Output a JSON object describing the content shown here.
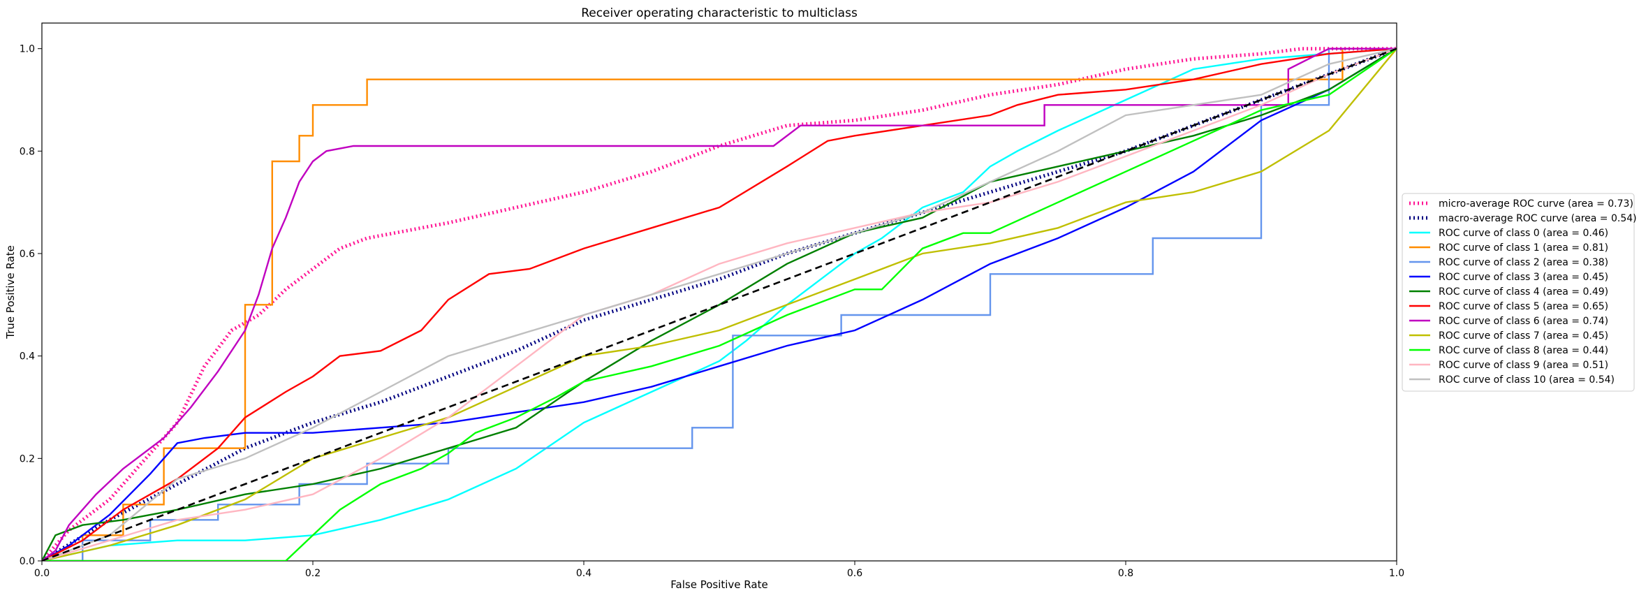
{
  "chart_data": {
    "type": "line",
    "title": "Receiver operating characteristic to multiclass",
    "xlabel": "False Positive Rate",
    "ylabel": "True Positive Rate",
    "xlim": [
      0.0,
      1.0
    ],
    "ylim": [
      0.0,
      1.05
    ],
    "xticks": [
      0.0,
      0.2,
      0.4,
      0.6,
      0.8,
      1.0
    ],
    "xtick_labels": [
      "0.0",
      "0.2",
      "0.4",
      "0.6",
      "0.8",
      "1.0"
    ],
    "yticks": [
      0.0,
      0.2,
      0.4,
      0.6,
      0.8,
      1.0
    ],
    "ytick_labels": [
      "0.0",
      "0.2",
      "0.4",
      "0.6",
      "0.8",
      "1.0"
    ],
    "grid": false,
    "legend_position": "center-right, outside plot",
    "reference_line": {
      "x": [
        0,
        1
      ],
      "y": [
        0,
        1
      ],
      "color": "#000000",
      "style": "dashed"
    },
    "series": [
      {
        "name": "micro-average ROC curve (area = 0.73)",
        "color": "#ff1493",
        "style": "dotted-thick",
        "x": [
          0.0,
          0.02,
          0.05,
          0.08,
          0.1,
          0.12,
          0.14,
          0.16,
          0.18,
          0.2,
          0.22,
          0.24,
          0.26,
          0.3,
          0.35,
          0.4,
          0.45,
          0.5,
          0.55,
          0.6,
          0.65,
          0.7,
          0.75,
          0.8,
          0.85,
          0.9,
          0.93,
          0.95,
          1.0
        ],
        "y": [
          0.0,
          0.06,
          0.12,
          0.21,
          0.27,
          0.38,
          0.45,
          0.48,
          0.53,
          0.57,
          0.61,
          0.63,
          0.64,
          0.66,
          0.69,
          0.72,
          0.76,
          0.81,
          0.85,
          0.86,
          0.88,
          0.91,
          0.93,
          0.96,
          0.98,
          0.99,
          1.0,
          1.0,
          1.0
        ]
      },
      {
        "name": "macro-average ROC curve (area = 0.54)",
        "color": "#000080",
        "style": "dotted-thick",
        "x": [
          0.0,
          0.05,
          0.1,
          0.15,
          0.2,
          0.25,
          0.3,
          0.35,
          0.4,
          0.45,
          0.5,
          0.55,
          0.6,
          0.65,
          0.7,
          0.75,
          0.8,
          0.85,
          0.9,
          0.95,
          1.0
        ],
        "y": [
          0.0,
          0.08,
          0.15,
          0.22,
          0.27,
          0.31,
          0.36,
          0.41,
          0.47,
          0.51,
          0.55,
          0.6,
          0.64,
          0.68,
          0.72,
          0.76,
          0.8,
          0.85,
          0.9,
          0.95,
          1.0
        ]
      },
      {
        "name": "ROC curve of class 0 (area = 0.46)",
        "color": "#00ffff",
        "style": "solid",
        "x": [
          0.0,
          0.05,
          0.1,
          0.15,
          0.2,
          0.25,
          0.3,
          0.35,
          0.4,
          0.45,
          0.5,
          0.52,
          0.55,
          0.58,
          0.6,
          0.62,
          0.65,
          0.68,
          0.7,
          0.72,
          0.75,
          0.8,
          0.85,
          0.9,
          0.95,
          1.0
        ],
        "y": [
          0.0,
          0.03,
          0.04,
          0.04,
          0.05,
          0.08,
          0.12,
          0.18,
          0.27,
          0.33,
          0.39,
          0.43,
          0.5,
          0.56,
          0.6,
          0.63,
          0.69,
          0.72,
          0.77,
          0.8,
          0.84,
          0.9,
          0.96,
          0.98,
          0.99,
          1.0
        ]
      },
      {
        "name": "ROC curve of class 1 (area = 0.81)",
        "color": "#ff8c00",
        "style": "step",
        "x": [
          0.0,
          0.03,
          0.03,
          0.06,
          0.06,
          0.09,
          0.09,
          0.15,
          0.15,
          0.17,
          0.17,
          0.19,
          0.19,
          0.2,
          0.2,
          0.22,
          0.22,
          0.24,
          0.24,
          0.96,
          0.96,
          1.0
        ],
        "y": [
          0.0,
          0.0,
          0.05,
          0.05,
          0.11,
          0.11,
          0.22,
          0.22,
          0.5,
          0.5,
          0.78,
          0.78,
          0.83,
          0.83,
          0.89,
          0.89,
          0.89,
          0.89,
          0.94,
          0.94,
          1.0,
          1.0
        ]
      },
      {
        "name": "ROC curve of class 2 (area = 0.38)",
        "color": "#6495ed",
        "style": "step",
        "x": [
          0.0,
          0.03,
          0.03,
          0.08,
          0.08,
          0.13,
          0.13,
          0.19,
          0.19,
          0.24,
          0.24,
          0.3,
          0.3,
          0.48,
          0.48,
          0.51,
          0.51,
          0.59,
          0.59,
          0.7,
          0.7,
          0.82,
          0.82,
          0.9,
          0.9,
          0.95,
          0.95,
          1.0
        ],
        "y": [
          0.0,
          0.0,
          0.04,
          0.04,
          0.08,
          0.08,
          0.11,
          0.11,
          0.15,
          0.15,
          0.19,
          0.19,
          0.22,
          0.22,
          0.26,
          0.26,
          0.44,
          0.44,
          0.48,
          0.48,
          0.56,
          0.56,
          0.63,
          0.63,
          0.89,
          0.89,
          1.0,
          1.0
        ]
      },
      {
        "name": "ROC curve of class 3 (area = 0.45)",
        "color": "#0000ff",
        "style": "solid",
        "x": [
          0.0,
          0.02,
          0.05,
          0.08,
          0.1,
          0.12,
          0.15,
          0.2,
          0.25,
          0.3,
          0.35,
          0.4,
          0.45,
          0.5,
          0.55,
          0.6,
          0.65,
          0.7,
          0.75,
          0.8,
          0.85,
          0.9,
          0.95,
          1.0
        ],
        "y": [
          0.0,
          0.03,
          0.09,
          0.17,
          0.23,
          0.24,
          0.25,
          0.25,
          0.26,
          0.27,
          0.29,
          0.31,
          0.34,
          0.38,
          0.42,
          0.45,
          0.51,
          0.58,
          0.63,
          0.69,
          0.76,
          0.86,
          0.92,
          1.0
        ]
      },
      {
        "name": "ROC curve of class 4 (area = 0.49)",
        "color": "#008000",
        "style": "solid",
        "x": [
          0.0,
          0.01,
          0.03,
          0.06,
          0.1,
          0.15,
          0.2,
          0.25,
          0.3,
          0.35,
          0.4,
          0.45,
          0.5,
          0.55,
          0.6,
          0.65,
          0.7,
          0.75,
          0.8,
          0.85,
          0.9,
          0.95,
          1.0
        ],
        "y": [
          0.0,
          0.05,
          0.07,
          0.08,
          0.1,
          0.13,
          0.15,
          0.18,
          0.22,
          0.26,
          0.35,
          0.43,
          0.5,
          0.58,
          0.64,
          0.67,
          0.74,
          0.77,
          0.8,
          0.83,
          0.87,
          0.92,
          1.0
        ]
      },
      {
        "name": "ROC curve of class 5 (area = 0.65)",
        "color": "#ff0000",
        "style": "solid",
        "x": [
          0.0,
          0.03,
          0.06,
          0.1,
          0.13,
          0.15,
          0.18,
          0.2,
          0.22,
          0.25,
          0.28,
          0.3,
          0.33,
          0.36,
          0.4,
          0.45,
          0.5,
          0.55,
          0.58,
          0.6,
          0.65,
          0.7,
          0.72,
          0.75,
          0.8,
          0.85,
          0.9,
          0.95,
          1.0
        ],
        "y": [
          0.0,
          0.04,
          0.1,
          0.16,
          0.22,
          0.28,
          0.33,
          0.36,
          0.4,
          0.41,
          0.45,
          0.51,
          0.56,
          0.57,
          0.61,
          0.65,
          0.69,
          0.77,
          0.82,
          0.83,
          0.85,
          0.87,
          0.89,
          0.91,
          0.92,
          0.94,
          0.97,
          0.99,
          1.0
        ]
      },
      {
        "name": "ROC curve of class 6 (area = 0.74)",
        "color": "#c000c0",
        "style": "step",
        "x": [
          0.0,
          0.01,
          0.02,
          0.04,
          0.06,
          0.09,
          0.11,
          0.13,
          0.15,
          0.16,
          0.17,
          0.18,
          0.19,
          0.2,
          0.21,
          0.23,
          0.23,
          0.54,
          0.56,
          0.74,
          0.74,
          0.92,
          0.92,
          0.95,
          1.0
        ],
        "y": [
          0.0,
          0.02,
          0.07,
          0.13,
          0.18,
          0.24,
          0.3,
          0.37,
          0.45,
          0.52,
          0.61,
          0.67,
          0.74,
          0.78,
          0.8,
          0.81,
          0.81,
          0.81,
          0.85,
          0.85,
          0.89,
          0.89,
          0.96,
          1.0,
          1.0
        ]
      },
      {
        "name": "ROC curve of class 7 (area = 0.45)",
        "color": "#bfbf00",
        "style": "solid",
        "x": [
          0.0,
          0.05,
          0.1,
          0.15,
          0.2,
          0.25,
          0.3,
          0.35,
          0.4,
          0.45,
          0.5,
          0.55,
          0.6,
          0.65,
          0.7,
          0.75,
          0.8,
          0.85,
          0.9,
          0.95,
          1.0
        ],
        "y": [
          0.0,
          0.03,
          0.07,
          0.12,
          0.2,
          0.24,
          0.28,
          0.34,
          0.4,
          0.42,
          0.45,
          0.5,
          0.55,
          0.6,
          0.62,
          0.65,
          0.7,
          0.72,
          0.76,
          0.84,
          1.0
        ]
      },
      {
        "name": "ROC curve of class 8 (area = 0.44)",
        "color": "#00ff00",
        "style": "step",
        "x": [
          0.0,
          0.18,
          0.2,
          0.22,
          0.25,
          0.28,
          0.3,
          0.32,
          0.35,
          0.38,
          0.4,
          0.45,
          0.5,
          0.55,
          0.6,
          0.62,
          0.65,
          0.68,
          0.7,
          0.75,
          0.8,
          0.85,
          0.9,
          0.95,
          1.0
        ],
        "y": [
          0.0,
          0.0,
          0.05,
          0.1,
          0.15,
          0.18,
          0.21,
          0.25,
          0.28,
          0.32,
          0.35,
          0.38,
          0.42,
          0.48,
          0.53,
          0.53,
          0.61,
          0.64,
          0.64,
          0.7,
          0.76,
          0.82,
          0.88,
          0.91,
          1.0
        ]
      },
      {
        "name": "ROC curve of class 9 (area = 0.51)",
        "color": "#ffb6c1",
        "style": "solid",
        "x": [
          0.0,
          0.05,
          0.1,
          0.15,
          0.2,
          0.25,
          0.3,
          0.35,
          0.4,
          0.45,
          0.5,
          0.55,
          0.6,
          0.65,
          0.7,
          0.75,
          0.8,
          0.85,
          0.9,
          0.95,
          1.0
        ],
        "y": [
          0.0,
          0.04,
          0.08,
          0.1,
          0.13,
          0.2,
          0.28,
          0.38,
          0.48,
          0.52,
          0.58,
          0.62,
          0.65,
          0.68,
          0.7,
          0.74,
          0.79,
          0.84,
          0.89,
          0.95,
          1.0
        ]
      },
      {
        "name": "ROC curve of class 10 (area = 0.54)",
        "color": "#c0c0c0",
        "style": "solid",
        "x": [
          0.0,
          0.05,
          0.1,
          0.15,
          0.2,
          0.25,
          0.3,
          0.35,
          0.4,
          0.45,
          0.5,
          0.55,
          0.6,
          0.65,
          0.7,
          0.75,
          0.8,
          0.85,
          0.9,
          0.95,
          1.0
        ],
        "y": [
          0.0,
          0.05,
          0.16,
          0.2,
          0.26,
          0.33,
          0.4,
          0.44,
          0.48,
          0.52,
          0.56,
          0.6,
          0.64,
          0.68,
          0.74,
          0.8,
          0.87,
          0.89,
          0.91,
          0.97,
          1.0
        ]
      }
    ]
  }
}
